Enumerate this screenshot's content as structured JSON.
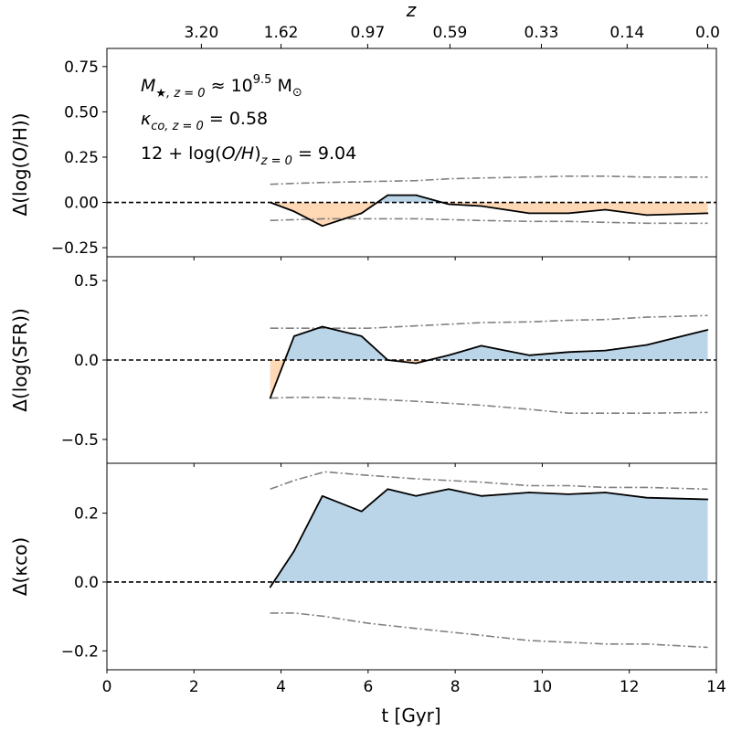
{
  "figure": {
    "top_axis": {
      "label": "z",
      "ticks": [
        {
          "t": 2.17,
          "label": "3.20"
        },
        {
          "t": 4.0,
          "label": "1.62"
        },
        {
          "t": 5.99,
          "label": "0.97"
        },
        {
          "t": 7.88,
          "label": "0.59"
        },
        {
          "t": 9.98,
          "label": "0.33"
        },
        {
          "t": 11.95,
          "label": "0.14"
        },
        {
          "t": 13.8,
          "label": "0.0"
        }
      ]
    },
    "x_axis": {
      "label": "t [Gyr]",
      "range": [
        0,
        14
      ],
      "ticks": [
        0,
        2,
        4,
        6,
        8,
        10,
        12,
        14
      ]
    },
    "annotations": {
      "mass_prefix": "M",
      "mass_sub": "★, z = 0",
      "mass_eq": " ≈ 10",
      "mass_exp": "9.5",
      "mass_unit": " M",
      "mass_unit_sub": "⊙",
      "kappa_sym": "κ",
      "kappa_sub": "co, z = 0",
      "kappa_val": " = 0.58",
      "metal_prefix": "12 + log(",
      "metal_var": "O/H",
      "metal_close": ")",
      "metal_sub": "z = 0",
      "metal_val": " = 9.04"
    }
  },
  "colors": {
    "positive_fill": "#bad4e8",
    "negative_fill": "#ffd8b5",
    "line": "#000000",
    "envelope": "#808080"
  },
  "chart_data": [
    {
      "type": "line",
      "panel": "top",
      "ylabel": "Δ(log(O/H))",
      "ylim": [
        -0.3,
        0.85
      ],
      "yticks": [
        -0.25,
        0.0,
        0.25,
        0.5,
        0.75
      ],
      "ytick_labels": [
        "−0.25",
        "0.00",
        "0.25",
        "0.50",
        "0.75"
      ],
      "x": [
        3.75,
        4.3,
        4.95,
        5.85,
        6.45,
        7.1,
        7.85,
        8.6,
        9.7,
        10.6,
        11.45,
        12.4,
        13.8
      ],
      "y": [
        0.0,
        -0.05,
        -0.13,
        -0.06,
        0.04,
        0.04,
        -0.01,
        -0.02,
        -0.06,
        -0.06,
        -0.04,
        -0.07,
        -0.06
      ],
      "upper_x": [
        3.75,
        4.3,
        5.0,
        6.0,
        7.1,
        7.85,
        8.6,
        9.7,
        10.6,
        11.45,
        12.4,
        13.8
      ],
      "upper_y": [
        0.1,
        0.105,
        0.11,
        0.115,
        0.12,
        0.13,
        0.135,
        0.14,
        0.145,
        0.145,
        0.14,
        0.14
      ],
      "lower_x": [
        3.75,
        4.3,
        5.0,
        6.0,
        7.1,
        8.6,
        9.7,
        10.6,
        11.45,
        12.4,
        13.8
      ],
      "lower_y": [
        -0.1,
        -0.095,
        -0.09,
        -0.09,
        -0.09,
        -0.1,
        -0.105,
        -0.105,
        -0.11,
        -0.115,
        -0.115
      ]
    },
    {
      "type": "line",
      "panel": "middle",
      "ylabel": "Δ(log(SFR))",
      "ylim": [
        -0.65,
        0.65
      ],
      "yticks": [
        -0.5,
        0.0,
        0.5
      ],
      "ytick_labels": [
        "−0.5",
        "0.0",
        "0.5"
      ],
      "x": [
        3.75,
        4.3,
        4.95,
        5.85,
        6.45,
        7.1,
        7.85,
        8.6,
        9.7,
        10.6,
        11.45,
        12.4,
        13.8
      ],
      "y": [
        -0.24,
        0.15,
        0.21,
        0.15,
        0.0,
        -0.02,
        0.03,
        0.09,
        0.03,
        0.05,
        0.06,
        0.095,
        0.19
      ],
      "upper_x": [
        3.75,
        4.3,
        5.0,
        6.0,
        7.1,
        8.6,
        9.7,
        10.6,
        11.45,
        12.4,
        13.8
      ],
      "upper_y": [
        0.2,
        0.2,
        0.2,
        0.2,
        0.215,
        0.235,
        0.24,
        0.25,
        0.255,
        0.27,
        0.28
      ],
      "lower_x": [
        3.75,
        4.3,
        5.0,
        6.0,
        7.1,
        8.6,
        9.7,
        10.6,
        11.45,
        12.4,
        13.8
      ],
      "lower_y": [
        -0.24,
        -0.235,
        -0.235,
        -0.245,
        -0.26,
        -0.285,
        -0.31,
        -0.335,
        -0.335,
        -0.335,
        -0.33
      ]
    },
    {
      "type": "line",
      "panel": "bottom",
      "ylabel": "Δ(κco)",
      "ylim": [
        -0.255,
        0.345
      ],
      "yticks": [
        -0.2,
        0.0,
        0.2
      ],
      "ytick_labels": [
        "−0.2",
        "0.0",
        "0.2"
      ],
      "x": [
        3.75,
        4.3,
        4.95,
        5.85,
        6.45,
        7.1,
        7.85,
        8.6,
        9.7,
        10.6,
        11.45,
        12.4,
        13.8
      ],
      "y": [
        -0.015,
        0.09,
        0.25,
        0.205,
        0.27,
        0.25,
        0.27,
        0.25,
        0.26,
        0.255,
        0.26,
        0.245,
        0.24
      ],
      "upper_x": [
        3.75,
        4.3,
        5.0,
        6.0,
        7.1,
        8.6,
        9.7,
        10.6,
        11.45,
        12.4,
        13.8
      ],
      "upper_y": [
        0.27,
        0.295,
        0.32,
        0.31,
        0.3,
        0.29,
        0.28,
        0.28,
        0.275,
        0.275,
        0.27
      ],
      "lower_x": [
        3.75,
        4.3,
        5.0,
        6.0,
        7.1,
        8.6,
        9.7,
        10.6,
        11.45,
        12.4,
        13.8
      ],
      "lower_y": [
        -0.09,
        -0.09,
        -0.1,
        -0.12,
        -0.135,
        -0.155,
        -0.17,
        -0.175,
        -0.18,
        -0.18,
        -0.19
      ]
    }
  ]
}
